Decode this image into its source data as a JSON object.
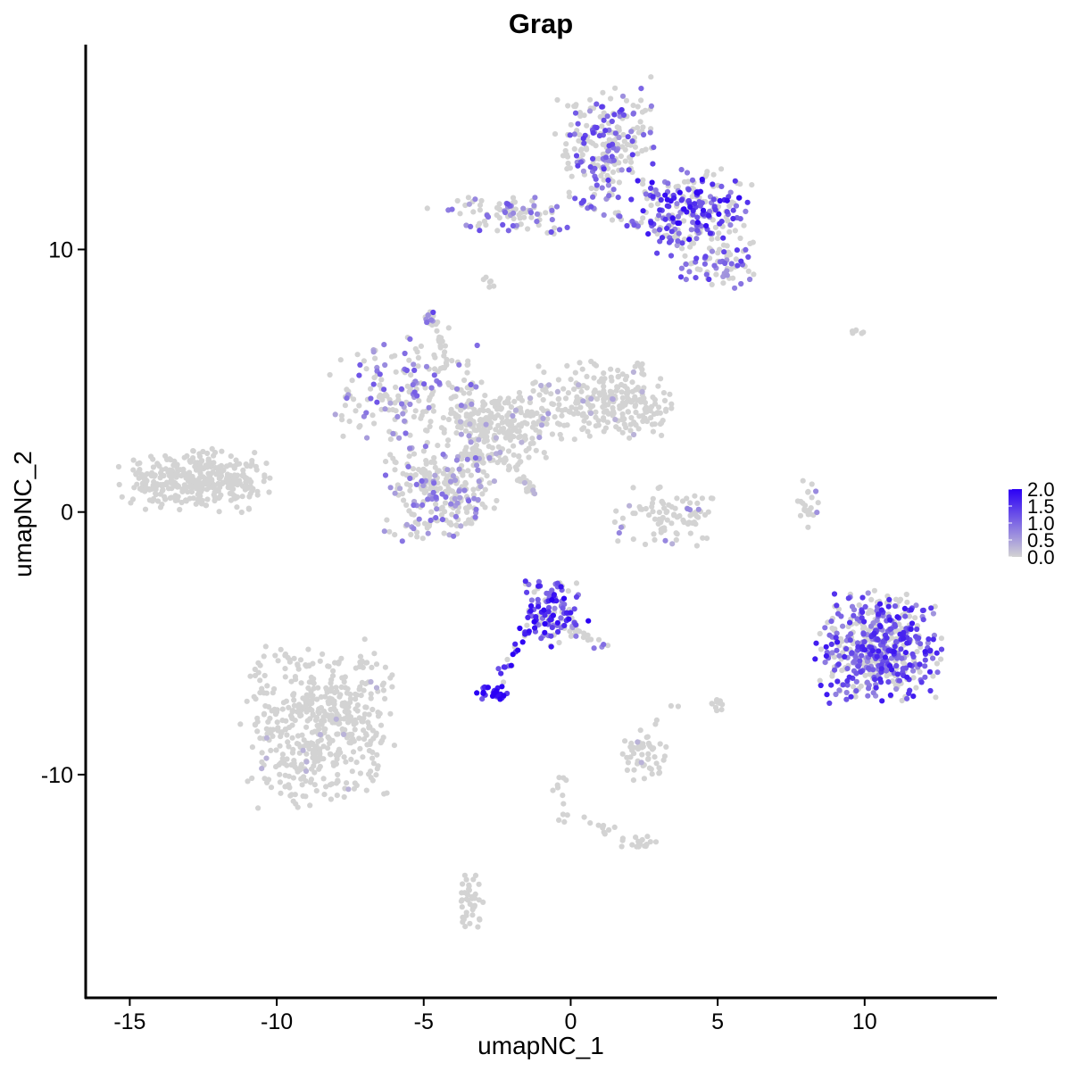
{
  "chart_data": {
    "type": "scatter",
    "title": "Grap",
    "xlabel": "umapNC_1",
    "ylabel": "umapNC_2",
    "xlim": [
      -16.5,
      14.5
    ],
    "ylim": [
      -18.5,
      17.8
    ],
    "x_ticks": [
      -15,
      -10,
      -5,
      0,
      5,
      10
    ],
    "x_tick_labels": [
      "-15",
      "-10",
      "-5",
      "0",
      "5",
      "10"
    ],
    "y_ticks": [
      -10,
      0,
      10
    ],
    "y_tick_labels": [
      "-10",
      "0",
      "10"
    ],
    "grid": false,
    "legend": {
      "placement": "right",
      "type": "colorbar",
      "min": 0.0,
      "max": 2.0,
      "labels": [
        "2.0",
        "1.5",
        "1.0",
        "0.5",
        "0.0"
      ],
      "low_color": "#d3d3d3",
      "high_color": "#2b00f5"
    },
    "clusters": [
      {
        "name": "",
        "cx": -12.8,
        "cy": 1.2,
        "sx": 1.2,
        "sy": 0.55,
        "n": 360,
        "expr": 0.0,
        "frac": 0.0
      },
      {
        "name": "",
        "cx": -8.6,
        "cy": -8.0,
        "sx": 1.2,
        "sy": 1.5,
        "n": 520,
        "expr": 0.05,
        "frac": 0.02
      },
      {
        "name": "",
        "cx": -5.6,
        "cy": 4.6,
        "sx": 1.2,
        "sy": 1.0,
        "n": 190,
        "expr": 0.8,
        "frac": 0.3
      },
      {
        "name": "",
        "cx": -4.5,
        "cy": 0.8,
        "sx": 0.9,
        "sy": 0.9,
        "n": 260,
        "expr": 0.7,
        "frac": 0.25
      },
      {
        "name": "",
        "cx": -2.5,
        "cy": 3.2,
        "sx": 0.9,
        "sy": 0.7,
        "n": 220,
        "expr": 0.4,
        "frac": 0.06
      },
      {
        "name": "",
        "cx": 0.8,
        "cy": 4.3,
        "sx": 1.2,
        "sy": 0.7,
        "n": 180,
        "expr": 0.3,
        "frac": 0.05
      },
      {
        "name": "",
        "cx": 2.1,
        "cy": 3.9,
        "sx": 0.7,
        "sy": 0.5,
        "n": 90,
        "expr": 0.2,
        "frac": 0.03
      },
      {
        "name": "",
        "cx": -4.8,
        "cy": 7.3,
        "sx": 0.15,
        "sy": 0.15,
        "n": 14,
        "expr": 1.0,
        "frac": 0.6
      },
      {
        "name": "",
        "cx": 1.2,
        "cy": 14.0,
        "sx": 0.8,
        "sy": 1.0,
        "n": 230,
        "expr": 1.0,
        "frac": 0.35
      },
      {
        "name": "",
        "cx": 4.2,
        "cy": 11.5,
        "sx": 0.9,
        "sy": 0.8,
        "n": 240,
        "expr": 1.3,
        "frac": 0.55
      },
      {
        "name": "",
        "cx": -2.0,
        "cy": 11.3,
        "sx": 1.0,
        "sy": 0.35,
        "n": 90,
        "expr": 0.9,
        "frac": 0.35
      },
      {
        "name": "",
        "cx": 5.0,
        "cy": 9.4,
        "sx": 0.6,
        "sy": 0.4,
        "n": 70,
        "expr": 1.0,
        "frac": 0.45
      },
      {
        "name": "",
        "cx": 3.2,
        "cy": -0.2,
        "sx": 0.8,
        "sy": 0.6,
        "n": 90,
        "expr": 0.5,
        "frac": 0.12
      },
      {
        "name": "",
        "cx": 8.0,
        "cy": 0.4,
        "sx": 0.2,
        "sy": 0.5,
        "n": 22,
        "expr": 0.5,
        "frac": 0.2
      },
      {
        "name": "",
        "cx": 10.5,
        "cy": -5.1,
        "sx": 1.0,
        "sy": 1.0,
        "n": 520,
        "expr": 1.2,
        "frac": 0.6
      },
      {
        "name": "",
        "cx": -0.5,
        "cy": -3.9,
        "sx": 0.5,
        "sy": 0.6,
        "n": 130,
        "expr": 1.4,
        "frac": 0.75
      },
      {
        "name": "",
        "cx": -2.7,
        "cy": -6.9,
        "sx": 0.25,
        "sy": 0.15,
        "n": 28,
        "expr": 1.6,
        "frac": 0.9
      },
      {
        "name": "",
        "cx": 2.5,
        "cy": -9.4,
        "sx": 0.4,
        "sy": 0.4,
        "n": 45,
        "expr": 0.1,
        "frac": 0.02
      },
      {
        "name": "",
        "cx": 5.0,
        "cy": -7.3,
        "sx": 0.15,
        "sy": 0.15,
        "n": 12,
        "expr": 0.0,
        "frac": 0.0
      },
      {
        "name": "",
        "cx": 2.3,
        "cy": -12.6,
        "sx": 0.3,
        "sy": 0.15,
        "n": 18,
        "expr": 0.0,
        "frac": 0.0
      },
      {
        "name": "",
        "cx": -3.4,
        "cy": -14.8,
        "sx": 0.2,
        "sy": 0.5,
        "n": 40,
        "expr": 0.0,
        "frac": 0.0
      },
      {
        "name": "",
        "cx": 9.7,
        "cy": 6.8,
        "sx": 0.15,
        "sy": 0.1,
        "n": 6,
        "expr": 0.0,
        "frac": 0.0
      }
    ],
    "streaks": [
      {
        "x0": 0.0,
        "y0": 12.0,
        "x1": 4.0,
        "y1": 10.1,
        "n": 40,
        "expr": 0.9,
        "frac": 0.5
      },
      {
        "x0": -3.5,
        "y0": 5.0,
        "x1": -3.0,
        "y1": 0.5,
        "n": 40,
        "expr": 0.3,
        "frac": 0.1
      },
      {
        "x0": -2.5,
        "y0": 2.3,
        "x1": -1.2,
        "y1": 0.6,
        "n": 30,
        "expr": 0.2,
        "frac": 0.1
      },
      {
        "x0": -1.5,
        "y0": -4.5,
        "x1": -2.5,
        "y1": -6.6,
        "n": 22,
        "expr": 1.6,
        "frac": 0.8
      },
      {
        "x0": 0.0,
        "y0": -4.3,
        "x1": 1.2,
        "y1": -5.2,
        "n": 16,
        "expr": 0.8,
        "frac": 0.4
      },
      {
        "x0": -4.4,
        "y0": 7.0,
        "x1": -4.2,
        "y1": 5.5,
        "n": 12,
        "expr": 0.1,
        "frac": 0.0
      },
      {
        "x0": -0.4,
        "y0": -10.0,
        "x1": -0.1,
        "y1": -11.8,
        "n": 12,
        "expr": 0.0,
        "frac": 0.0
      },
      {
        "x0": 0.5,
        "y0": -11.8,
        "x1": 1.5,
        "y1": -12.2,
        "n": 10,
        "expr": 0.0,
        "frac": 0.0
      },
      {
        "x0": -2.8,
        "y0": 9.0,
        "x1": -2.8,
        "y1": 8.4,
        "n": 6,
        "expr": 0.0,
        "frac": 0.0
      },
      {
        "x0": 8.9,
        "y0": -4.2,
        "x1": 9.3,
        "y1": -6.8,
        "n": 10,
        "expr": 0.8,
        "frac": 0.4
      },
      {
        "x0": 2.0,
        "y0": -9.0,
        "x1": 3.6,
        "y1": -7.6,
        "n": 10,
        "expr": 0.1,
        "frac": 0.0
      }
    ]
  }
}
